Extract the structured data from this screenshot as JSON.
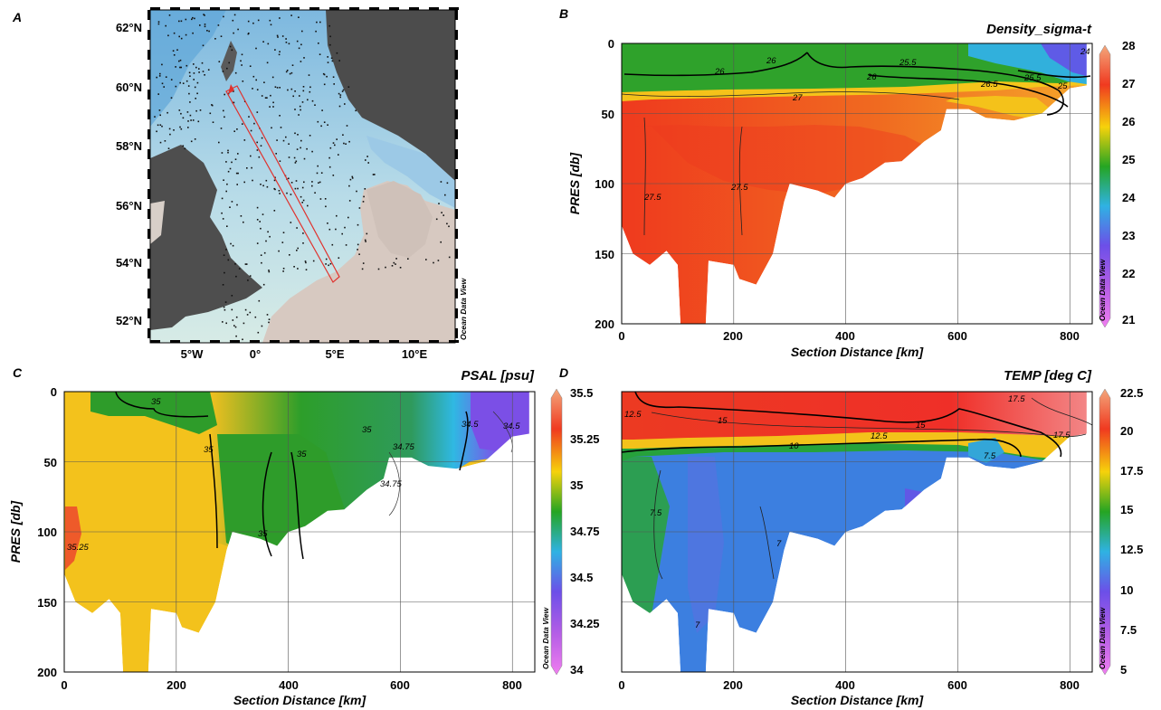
{
  "panels": {
    "a": {
      "letter": "A",
      "lat_labels": [
        "62°N",
        "60°N",
        "58°N",
        "56°N",
        "54°N",
        "52°N"
      ],
      "lon_labels": [
        "5°W",
        "0°",
        "5°E",
        "10°E"
      ],
      "credit": "Ocean Data View"
    },
    "b": {
      "letter": "B",
      "title": "Density_sigma-t",
      "ylabel": "PRES [db]",
      "xlabel": "Section Distance [km]",
      "x_ticks": [
        "0",
        "200",
        "400",
        "600",
        "800"
      ],
      "y_ticks": [
        "0",
        "50",
        "100",
        "150",
        "200"
      ],
      "colorbar_ticks": [
        "28",
        "27",
        "26",
        "25",
        "24",
        "23",
        "22",
        "21"
      ],
      "contour_labels": [
        "26",
        "26",
        "26",
        "25.5",
        "26.5",
        "25.5",
        "25",
        "24",
        "27",
        "27.5",
        "27.5"
      ],
      "credit": "Ocean Data View"
    },
    "c": {
      "letter": "C",
      "title": "PSAL [psu]",
      "ylabel": "PRES [db]",
      "xlabel": "Section Distance [km]",
      "x_ticks": [
        "0",
        "200",
        "400",
        "600",
        "800"
      ],
      "y_ticks": [
        "0",
        "50",
        "100",
        "150",
        "200"
      ],
      "colorbar_ticks": [
        "35.5",
        "35.25",
        "35",
        "34.75",
        "34.5",
        "34.25",
        "34"
      ],
      "contour_labels": [
        "35",
        "35",
        "35",
        "35",
        "35",
        "34.75",
        "34.75",
        "34.5",
        "34.5",
        "35.25"
      ],
      "credit": "Ocean Data View"
    },
    "d": {
      "letter": "D",
      "title": "TEMP [deg C]",
      "ylabel": "PRES [db]",
      "xlabel": "Section Distance [km]",
      "x_ticks": [
        "0",
        "200",
        "400",
        "600",
        "800"
      ],
      "colorbar_ticks": [
        "22.5",
        "20",
        "17.5",
        "15",
        "12.5",
        "10",
        "7.5",
        "5"
      ],
      "contour_labels": [
        "12.5",
        "15",
        "15",
        "17.5",
        "17.5",
        "10",
        "12.5",
        "7.5",
        "7.5",
        "7",
        "7"
      ],
      "credit": "Ocean Data View"
    }
  },
  "chart_data": [
    {
      "type": "heatmap",
      "title": "Density_sigma-t",
      "xlabel": "Section Distance [km]",
      "ylabel": "PRES [db]",
      "xlim": [
        0,
        840
      ],
      "ylim": [
        200,
        0
      ],
      "colorbar_range": [
        21,
        28
      ],
      "bottom_profile": {
        "x": [
          0,
          20,
          50,
          80,
          100,
          105,
          150,
          155,
          200,
          210,
          240,
          270,
          290,
          300,
          350,
          380,
          400,
          430,
          470,
          500,
          540,
          570,
          580,
          620,
          650,
          700,
          750,
          800,
          830
        ],
        "depth": [
          130,
          150,
          158,
          148,
          158,
          200,
          200,
          155,
          158,
          168,
          172,
          150,
          113,
          100,
          105,
          110,
          100,
          96,
          85,
          84,
          70,
          62,
          47,
          47,
          53,
          55,
          50,
          32,
          30
        ]
      },
      "contour_levels": [
        24,
        25,
        25.5,
        26,
        26.5,
        27,
        27.5
      ]
    },
    {
      "type": "heatmap",
      "title": "PSAL [psu]",
      "xlabel": "Section Distance [km]",
      "ylabel": "PRES [db]",
      "xlim": [
        0,
        840
      ],
      "ylim": [
        200,
        0
      ],
      "colorbar_range": [
        34,
        35.5
      ],
      "bottom_profile": {
        "x": [
          0,
          20,
          50,
          80,
          100,
          105,
          150,
          155,
          200,
          210,
          240,
          270,
          290,
          300,
          350,
          380,
          400,
          430,
          470,
          500,
          540,
          570,
          580,
          620,
          650,
          700,
          750,
          800,
          830
        ],
        "depth": [
          130,
          150,
          158,
          148,
          158,
          200,
          200,
          155,
          158,
          168,
          172,
          150,
          113,
          100,
          105,
          110,
          100,
          96,
          85,
          84,
          70,
          62,
          47,
          47,
          53,
          55,
          50,
          32,
          30
        ]
      },
      "contour_levels": [
        34.5,
        34.75,
        35,
        35.25
      ]
    },
    {
      "type": "heatmap",
      "title": "TEMP [deg C]",
      "xlabel": "Section Distance [km]",
      "ylabel": "PRES [db]",
      "xlim": [
        0,
        840
      ],
      "ylim": [
        200,
        0
      ],
      "colorbar_range": [
        5,
        22.5
      ],
      "bottom_profile": {
        "x": [
          0,
          20,
          50,
          80,
          100,
          105,
          150,
          155,
          200,
          210,
          240,
          270,
          290,
          300,
          350,
          380,
          400,
          430,
          470,
          500,
          540,
          570,
          580,
          620,
          650,
          700,
          750,
          800,
          830
        ],
        "depth": [
          130,
          150,
          158,
          148,
          158,
          200,
          200,
          155,
          158,
          168,
          172,
          150,
          113,
          100,
          105,
          110,
          100,
          96,
          85,
          84,
          70,
          62,
          47,
          47,
          53,
          55,
          50,
          32,
          30
        ]
      },
      "contour_levels": [
        7,
        7.5,
        10,
        12.5,
        15,
        17.5
      ]
    }
  ],
  "colors": {
    "land": "#4e4e4e",
    "sea_shallow": "#c7e3ec",
    "sea_deep": "#84c1e2",
    "track": "#e0322e"
  }
}
